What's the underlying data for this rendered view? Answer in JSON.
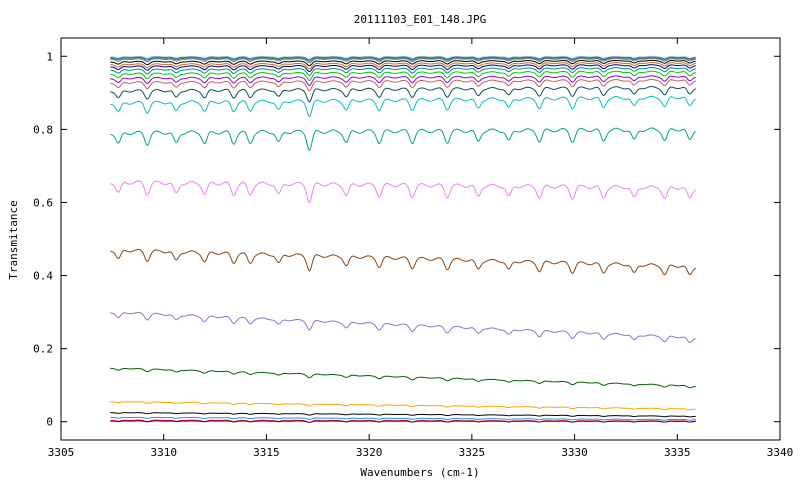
{
  "chart_data": {
    "type": "line",
    "title": "20111103_E01_148.JPG",
    "xlabel": "Wavenumbers (cm-1)",
    "ylabel": "Transmitance",
    "xlim": [
      3305,
      3340
    ],
    "ylim": [
      -0.05,
      1.05
    ],
    "x_ticks": [
      3305,
      3310,
      3315,
      3320,
      3325,
      3330,
      3335,
      3340
    ],
    "x_tick_labels": [
      "3305",
      "3310",
      "3315",
      "3320",
      "3325",
      "3330",
      "3335",
      "3340"
    ],
    "y_ticks": [
      0,
      0.2,
      0.4,
      0.6,
      0.8,
      1
    ],
    "y_tick_labels": [
      "0",
      "0.2",
      "0.4",
      "0.6",
      "0.8",
      "1"
    ],
    "grid": false,
    "legend": "none",
    "x_range": [
      3307.4,
      3335.9
    ],
    "absorption_lines": [
      3307.8,
      3309.2,
      3310.6,
      3312.0,
      3313.4,
      3314.2,
      3315.6,
      3317.1,
      3318.9,
      3320.5,
      3322.1,
      3323.8,
      3325.3,
      3326.8,
      3328.3,
      3329.9,
      3331.4,
      3332.9,
      3334.4,
      3335.6
    ],
    "series": [
      {
        "color": "#b0c4de",
        "start": 0.999,
        "end": 0.999,
        "dip": 0.004
      },
      {
        "color": "#4169e1",
        "start": 0.997,
        "end": 0.997,
        "dip": 0.004
      },
      {
        "color": "#2e8b57",
        "start": 0.995,
        "end": 0.995,
        "dip": 0.005
      },
      {
        "color": "#708090",
        "start": 0.992,
        "end": 0.993,
        "dip": 0.006
      },
      {
        "color": "#000000",
        "start": 0.985,
        "end": 0.988,
        "dip": 0.007
      },
      {
        "color": "#d2691e",
        "start": 0.978,
        "end": 0.982,
        "dip": 0.008
      },
      {
        "color": "#00008b",
        "start": 0.972,
        "end": 0.976,
        "dip": 0.009
      },
      {
        "color": "#008b8b",
        "start": 0.963,
        "end": 0.968,
        "dip": 0.01
      },
      {
        "color": "#00cd00",
        "start": 0.952,
        "end": 0.958,
        "dip": 0.012
      },
      {
        "color": "#9400d3",
        "start": 0.94,
        "end": 0.945,
        "dip": 0.013
      },
      {
        "color": "#cd5c5c",
        "start": 0.928,
        "end": 0.935,
        "dip": 0.015
      },
      {
        "color": "#105050",
        "start": 0.905,
        "end": 0.915,
        "dip": 0.02
      },
      {
        "color": "#00c0c0",
        "start": 0.872,
        "end": 0.888,
        "dip": 0.025
      },
      {
        "color": "#00aa77",
        "start": 0.79,
        "end": 0.8,
        "dip": 0.03
      },
      {
        "color": "#ee82ee",
        "start": 0.655,
        "end": 0.64,
        "dip": 0.03
      },
      {
        "color": "#8b4513",
        "start": 0.47,
        "end": 0.425,
        "dip": 0.025
      },
      {
        "color": "#9370db",
        "start": 0.3,
        "end": 0.23,
        "dip": 0.015
      },
      {
        "color": "#006400",
        "start": 0.147,
        "end": 0.098,
        "dip": 0.006
      },
      {
        "color": "#ffa500",
        "start": 0.055,
        "end": 0.035,
        "dip": 0.003
      },
      {
        "color": "#000000",
        "start": 0.025,
        "end": 0.015,
        "dip": 0.002
      },
      {
        "color": "#1e90ff",
        "start": 0.012,
        "end": 0.006,
        "dip": 0.002
      },
      {
        "color": "#ff0000",
        "start": 0.004,
        "end": 0.002,
        "dip": 0.003
      },
      {
        "color": "#4b0082",
        "start": 0.002,
        "end": 0.001,
        "dip": 0.002
      }
    ]
  }
}
